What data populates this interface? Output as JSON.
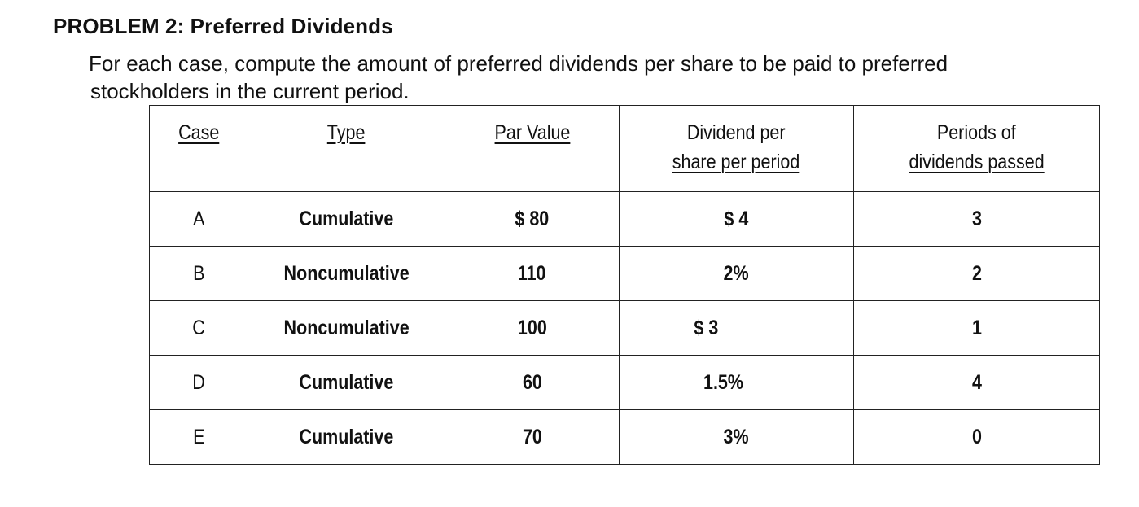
{
  "problem": {
    "title": "PROBLEM 2: Preferred Dividends",
    "instructions_line1": "For each case, compute the amount of preferred dividends per share to be paid to preferred",
    "instructions_line2": "stockholders in the current period."
  },
  "table": {
    "headers": {
      "case": "Case",
      "type": "Type",
      "par_value": "Par Value",
      "dividend_line1": "Dividend per",
      "dividend_line2": "share per period",
      "periods_line1": "Periods of",
      "periods_line2": "dividends passed"
    },
    "rows": [
      {
        "case": "A",
        "type": "Cumulative",
        "par_value": "$ 80",
        "dividend": "$ 4",
        "periods": "3"
      },
      {
        "case": "B",
        "type": "Noncumulative",
        "par_value": "110",
        "dividend": "2%",
        "periods": "2"
      },
      {
        "case": "C",
        "type": "Noncumulative",
        "par_value": "100",
        "dividend": "$ 3",
        "periods": "1"
      },
      {
        "case": "D",
        "type": "Cumulative",
        "par_value": "60",
        "dividend": "1.5%",
        "periods": "4"
      },
      {
        "case": "E",
        "type": "Cumulative",
        "par_value": "70",
        "dividend": "3%",
        "periods": "0"
      }
    ]
  }
}
